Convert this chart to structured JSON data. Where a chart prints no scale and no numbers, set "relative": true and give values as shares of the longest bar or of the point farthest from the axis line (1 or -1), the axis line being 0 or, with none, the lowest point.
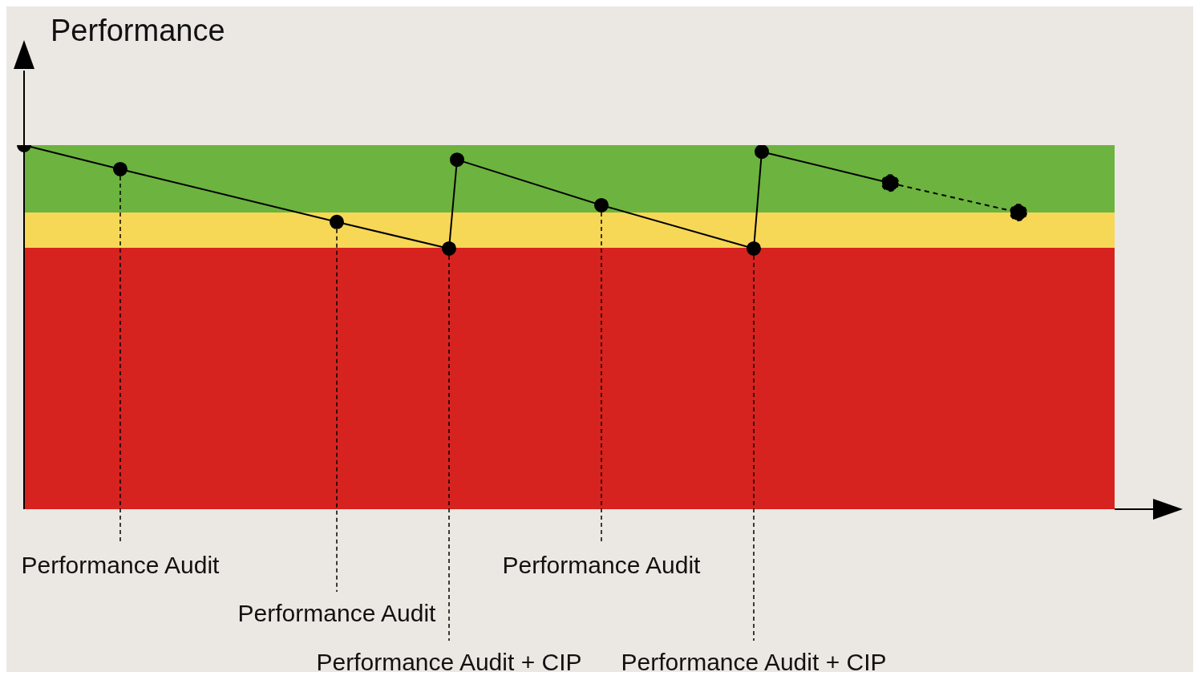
{
  "chart_data": {
    "type": "line",
    "relative": true,
    "ylabel": "Performance",
    "marker": "circle",
    "categories": [
      null,
      null,
      null,
      null,
      null,
      null,
      null,
      null,
      null,
      null,
      null,
      null,
      null,
      null,
      null,
      null,
      null,
      null,
      null,
      null,
      null,
      null,
      null,
      null,
      null,
      null,
      null,
      null,
      null,
      null,
      null,
      null,
      null,
      null,
      null,
      null,
      null,
      null,
      null,
      null,
      null,
      null,
      null,
      null,
      null,
      null,
      null,
      null,
      null,
      null,
      null,
      null,
      null,
      null,
      null,
      null,
      null,
      null,
      null,
      null,
      null,
      null,
      null,
      null,
      null,
      null,
      null,
      null,
      null,
      null,
      null,
      null,
      null,
      null,
      null,
      null,
      null,
      null,
      null,
      null,
      null,
      null,
      null,
      null,
      null,
      null,
      null,
      null,
      null,
      null,
      null,
      null,
      null,
      null,
      null,
      null,
      null,
      null,
      null,
      null,
      null,
      null,
      null,
      null,
      null,
      null,
      null,
      null,
      null,
      null,
      null,
      null,
      null,
      null,
      null,
      null,
      null,
      null,
      null,
      null,
      null,
      null,
      null,
      null,
      null,
      null,
      null,
      null,
      null,
      null,
      null,
      null,
      null,
      null,
      null,
      null,
      null
    ],
    "series": [
      {
        "color": "#000000",
        "line_style": "solid",
        "values": [
          1,
          null,
          null,
          null,
          null,
          null,
          null,
          null,
          null,
          null,
          null,
          null,
          0.934,
          null,
          null,
          null,
          null,
          null,
          null,
          null,
          null,
          null,
          null,
          null,
          null,
          null,
          null,
          null,
          null,
          null,
          null,
          null,
          null,
          null,
          null,
          null,
          null,
          null,
          null,
          0.789,
          null,
          null,
          null,
          null,
          null,
          null,
          null,
          null,
          null,
          null,
          null,
          null,
          null,
          0.716,
          0.96,
          null,
          null,
          null,
          null,
          null,
          null,
          null,
          null,
          null,
          null,
          null,
          null,
          null,
          null,
          null,
          null,
          null,
          0.835,
          null,
          null,
          null,
          null,
          null,
          null,
          null,
          null,
          null,
          null,
          null,
          null,
          null,
          null,
          null,
          null,
          null,
          null,
          0.716,
          0.982,
          null,
          null,
          null,
          null,
          null,
          null,
          null,
          null,
          null,
          null,
          null,
          null,
          null,
          null,
          null,
          0.896,
          null,
          null,
          null,
          null,
          null,
          null,
          null,
          null,
          null,
          null,
          null,
          null,
          null,
          null,
          null,
          null,
          null,
          null,
          null,
          null,
          null,
          null,
          null,
          null,
          null,
          null,
          null,
          null
        ]
      },
      {
        "color": "#000000",
        "line_style": "dashed",
        "values": [
          null,
          null,
          null,
          null,
          null,
          null,
          null,
          null,
          null,
          null,
          null,
          null,
          null,
          null,
          null,
          null,
          null,
          null,
          null,
          null,
          null,
          null,
          null,
          null,
          null,
          null,
          null,
          null,
          null,
          null,
          null,
          null,
          null,
          null,
          null,
          null,
          null,
          null,
          null,
          null,
          null,
          null,
          null,
          null,
          null,
          null,
          null,
          null,
          null,
          null,
          null,
          null,
          null,
          null,
          null,
          null,
          null,
          null,
          null,
          null,
          null,
          null,
          null,
          null,
          null,
          null,
          null,
          null,
          null,
          null,
          null,
          null,
          null,
          null,
          null,
          null,
          null,
          null,
          null,
          null,
          null,
          null,
          null,
          null,
          null,
          null,
          null,
          null,
          null,
          null,
          null,
          null,
          null,
          null,
          null,
          null,
          null,
          null,
          null,
          null,
          null,
          null,
          null,
          null,
          null,
          null,
          null,
          null,
          0.896,
          null,
          null,
          null,
          null,
          null,
          null,
          null,
          null,
          null,
          null,
          null,
          null,
          null,
          null,
          null,
          0.815,
          null,
          null,
          null,
          null,
          null,
          null,
          null,
          null,
          null,
          null,
          null,
          null
        ]
      }
    ],
    "bands": [
      {
        "axis": "y",
        "from": 0,
        "to": 0.718,
        "color": "#d7231f"
      },
      {
        "axis": "y",
        "from": 0.718,
        "to": 0.815,
        "color": "#f7d756"
      },
      {
        "axis": "y",
        "from": 0.815,
        "to": 1,
        "color": "#6db33f"
      }
    ],
    "annotations": [
      "Performance Audit",
      "Performance Audit",
      "Performance Audit + CIP",
      "Performance Audit",
      "Performance Audit + CIP"
    ]
  }
}
